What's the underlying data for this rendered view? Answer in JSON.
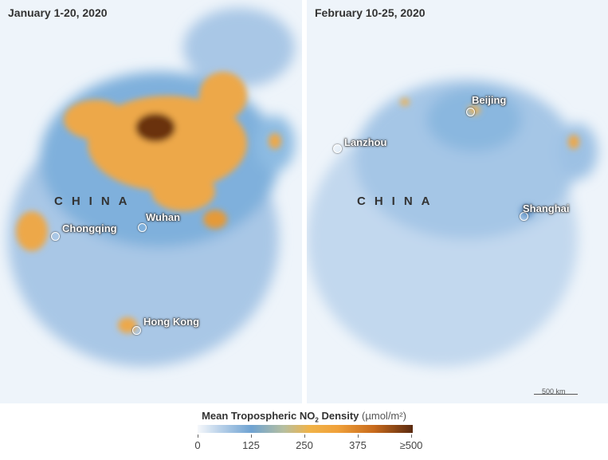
{
  "panels": [
    {
      "title": "January 1-20, 2020",
      "country": "CHINA",
      "cities": [
        "Chongqing",
        "Wuhan",
        "Hong Kong"
      ]
    },
    {
      "title": "February 10-25, 2020",
      "country": "CHINA",
      "cities": [
        "Beijing",
        "Lanzhou",
        "Shanghai"
      ],
      "scale_bar": "500 km"
    }
  ],
  "legend": {
    "title": "Mean Tropospheric NO",
    "subscript": "2",
    "title_rest": " Density",
    "unit": "(µmol/m²)",
    "ticks": [
      "0",
      "125",
      "250",
      "375",
      "≥500"
    ],
    "colors": [
      "#f6f8fb",
      "#6fa3d2",
      "#f0b348",
      "#c86a1c",
      "#5a2a10"
    ]
  }
}
